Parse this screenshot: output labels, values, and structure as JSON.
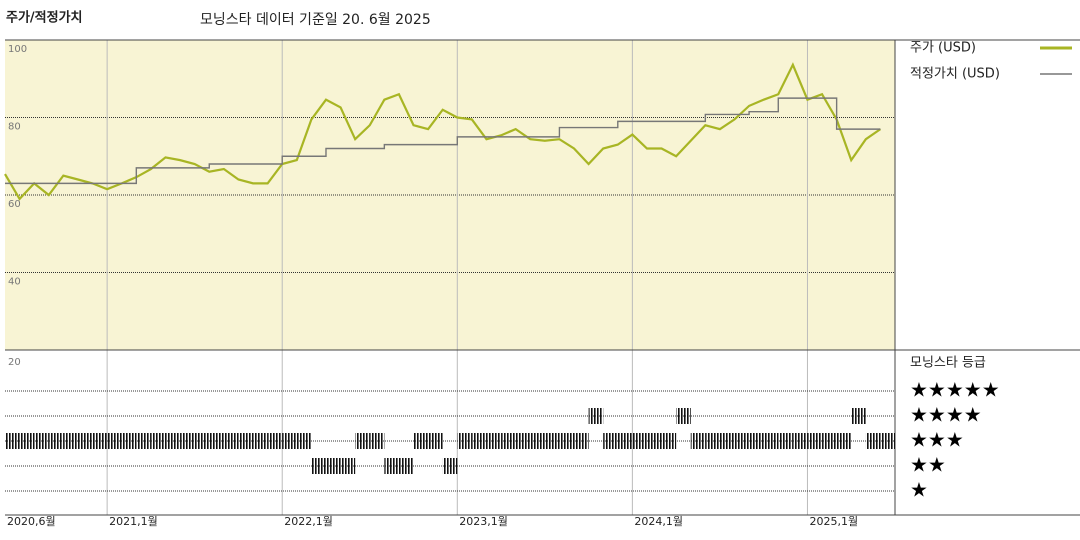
{
  "chart_data": {
    "type": "line",
    "title": "주가/적정가치",
    "subtitle": "모닝스타 데이터 기준일 20. 6월 2025",
    "x": [
      "2020-06",
      "2020-07",
      "2020-08",
      "2020-09",
      "2020-10",
      "2020-11",
      "2020-12",
      "2021-01",
      "2021-02",
      "2021-03",
      "2021-04",
      "2021-05",
      "2021-06",
      "2021-07",
      "2021-08",
      "2021-09",
      "2021-10",
      "2021-11",
      "2021-12",
      "2022-01",
      "2022-02",
      "2022-03",
      "2022-04",
      "2022-05",
      "2022-06",
      "2022-07",
      "2022-08",
      "2022-09",
      "2022-10",
      "2022-11",
      "2022-12",
      "2023-01",
      "2023-02",
      "2023-03",
      "2023-04",
      "2023-05",
      "2023-06",
      "2023-07",
      "2023-08",
      "2023-09",
      "2023-10",
      "2023-11",
      "2023-12",
      "2024-01",
      "2024-02",
      "2024-03",
      "2024-04",
      "2024-05",
      "2024-06",
      "2024-07",
      "2024-08",
      "2024-09",
      "2024-10",
      "2024-11",
      "2024-12",
      "2025-01",
      "2025-02",
      "2025-03",
      "2025-04",
      "2025-05",
      "2025-06"
    ],
    "series": [
      {
        "name": "주가 (USD)",
        "color": "#a8b524",
        "values": [
          65.4,
          59,
          63,
          60,
          65,
          64,
          63,
          61.5,
          63,
          64.6,
          66.7,
          69.7,
          69,
          68,
          66,
          66.7,
          64,
          63,
          63,
          68,
          69,
          79.5,
          84.6,
          82.6,
          74.4,
          78,
          84.6,
          86,
          78,
          77,
          82,
          80,
          79.5,
          74.4,
          75.4,
          77,
          74.4,
          74,
          74.4,
          72,
          68,
          72,
          73,
          75.6,
          72,
          72,
          70,
          74,
          78,
          77,
          79.5,
          83,
          84.6,
          86,
          93.6,
          84.6,
          86,
          79.5,
          69,
          74.4,
          77
        ]
      },
      {
        "name": "적정가치 (USD)",
        "color": "#777777",
        "step": true,
        "values": [
          63,
          63,
          63,
          63,
          63,
          63,
          63,
          63,
          63,
          67,
          67,
          67,
          67,
          67,
          68,
          68,
          68,
          68,
          68,
          70,
          70,
          70,
          72,
          72,
          72,
          72,
          73,
          73,
          73,
          73,
          73,
          75,
          75,
          75,
          75,
          75,
          75,
          75,
          77.4,
          77.4,
          77.4,
          77.4,
          79,
          79,
          79,
          79,
          79,
          79,
          80.8,
          80.8,
          80.8,
          81.5,
          81.5,
          85,
          85,
          85,
          85,
          77,
          77,
          77,
          77
        ]
      }
    ],
    "rating_title": "모닝스타 등급",
    "ratings": [
      3,
      3,
      3,
      3,
      3,
      3,
      3,
      3,
      3,
      3,
      3,
      3,
      3,
      3,
      3,
      3,
      3,
      3,
      3,
      3,
      3,
      2,
      2,
      2,
      3,
      3,
      2,
      2,
      3,
      3,
      2,
      3,
      3,
      3,
      3,
      3,
      3,
      3,
      3,
      3,
      4,
      3,
      3,
      3,
      3,
      3,
      4,
      3,
      3,
      3,
      3,
      3,
      3,
      3,
      3,
      3,
      3,
      3,
      4,
      3,
      3
    ],
    "rating_ticks": [
      {
        "value": 5,
        "label": "★★★★★"
      },
      {
        "value": 4,
        "label": "★★★★"
      },
      {
        "value": 3,
        "label": "★★★"
      },
      {
        "value": 2,
        "label": "★★"
      },
      {
        "value": 1,
        "label": "★"
      }
    ],
    "xlim": [
      "2020-06",
      "2025-07"
    ],
    "xticks": [
      {
        "value": "2020-06",
        "label": "2020,6월"
      },
      {
        "value": "2021-01",
        "label": "2021,1월"
      },
      {
        "value": "2022-01",
        "label": "2022,1월"
      },
      {
        "value": "2023-01",
        "label": "2023,1월"
      },
      {
        "value": "2024-01",
        "label": "2024,1월"
      },
      {
        "value": "2025-01",
        "label": "2025,1월"
      }
    ],
    "ylim": [
      20,
      100
    ],
    "yticks": [
      20,
      40,
      60,
      80,
      100
    ],
    "grid": true
  }
}
